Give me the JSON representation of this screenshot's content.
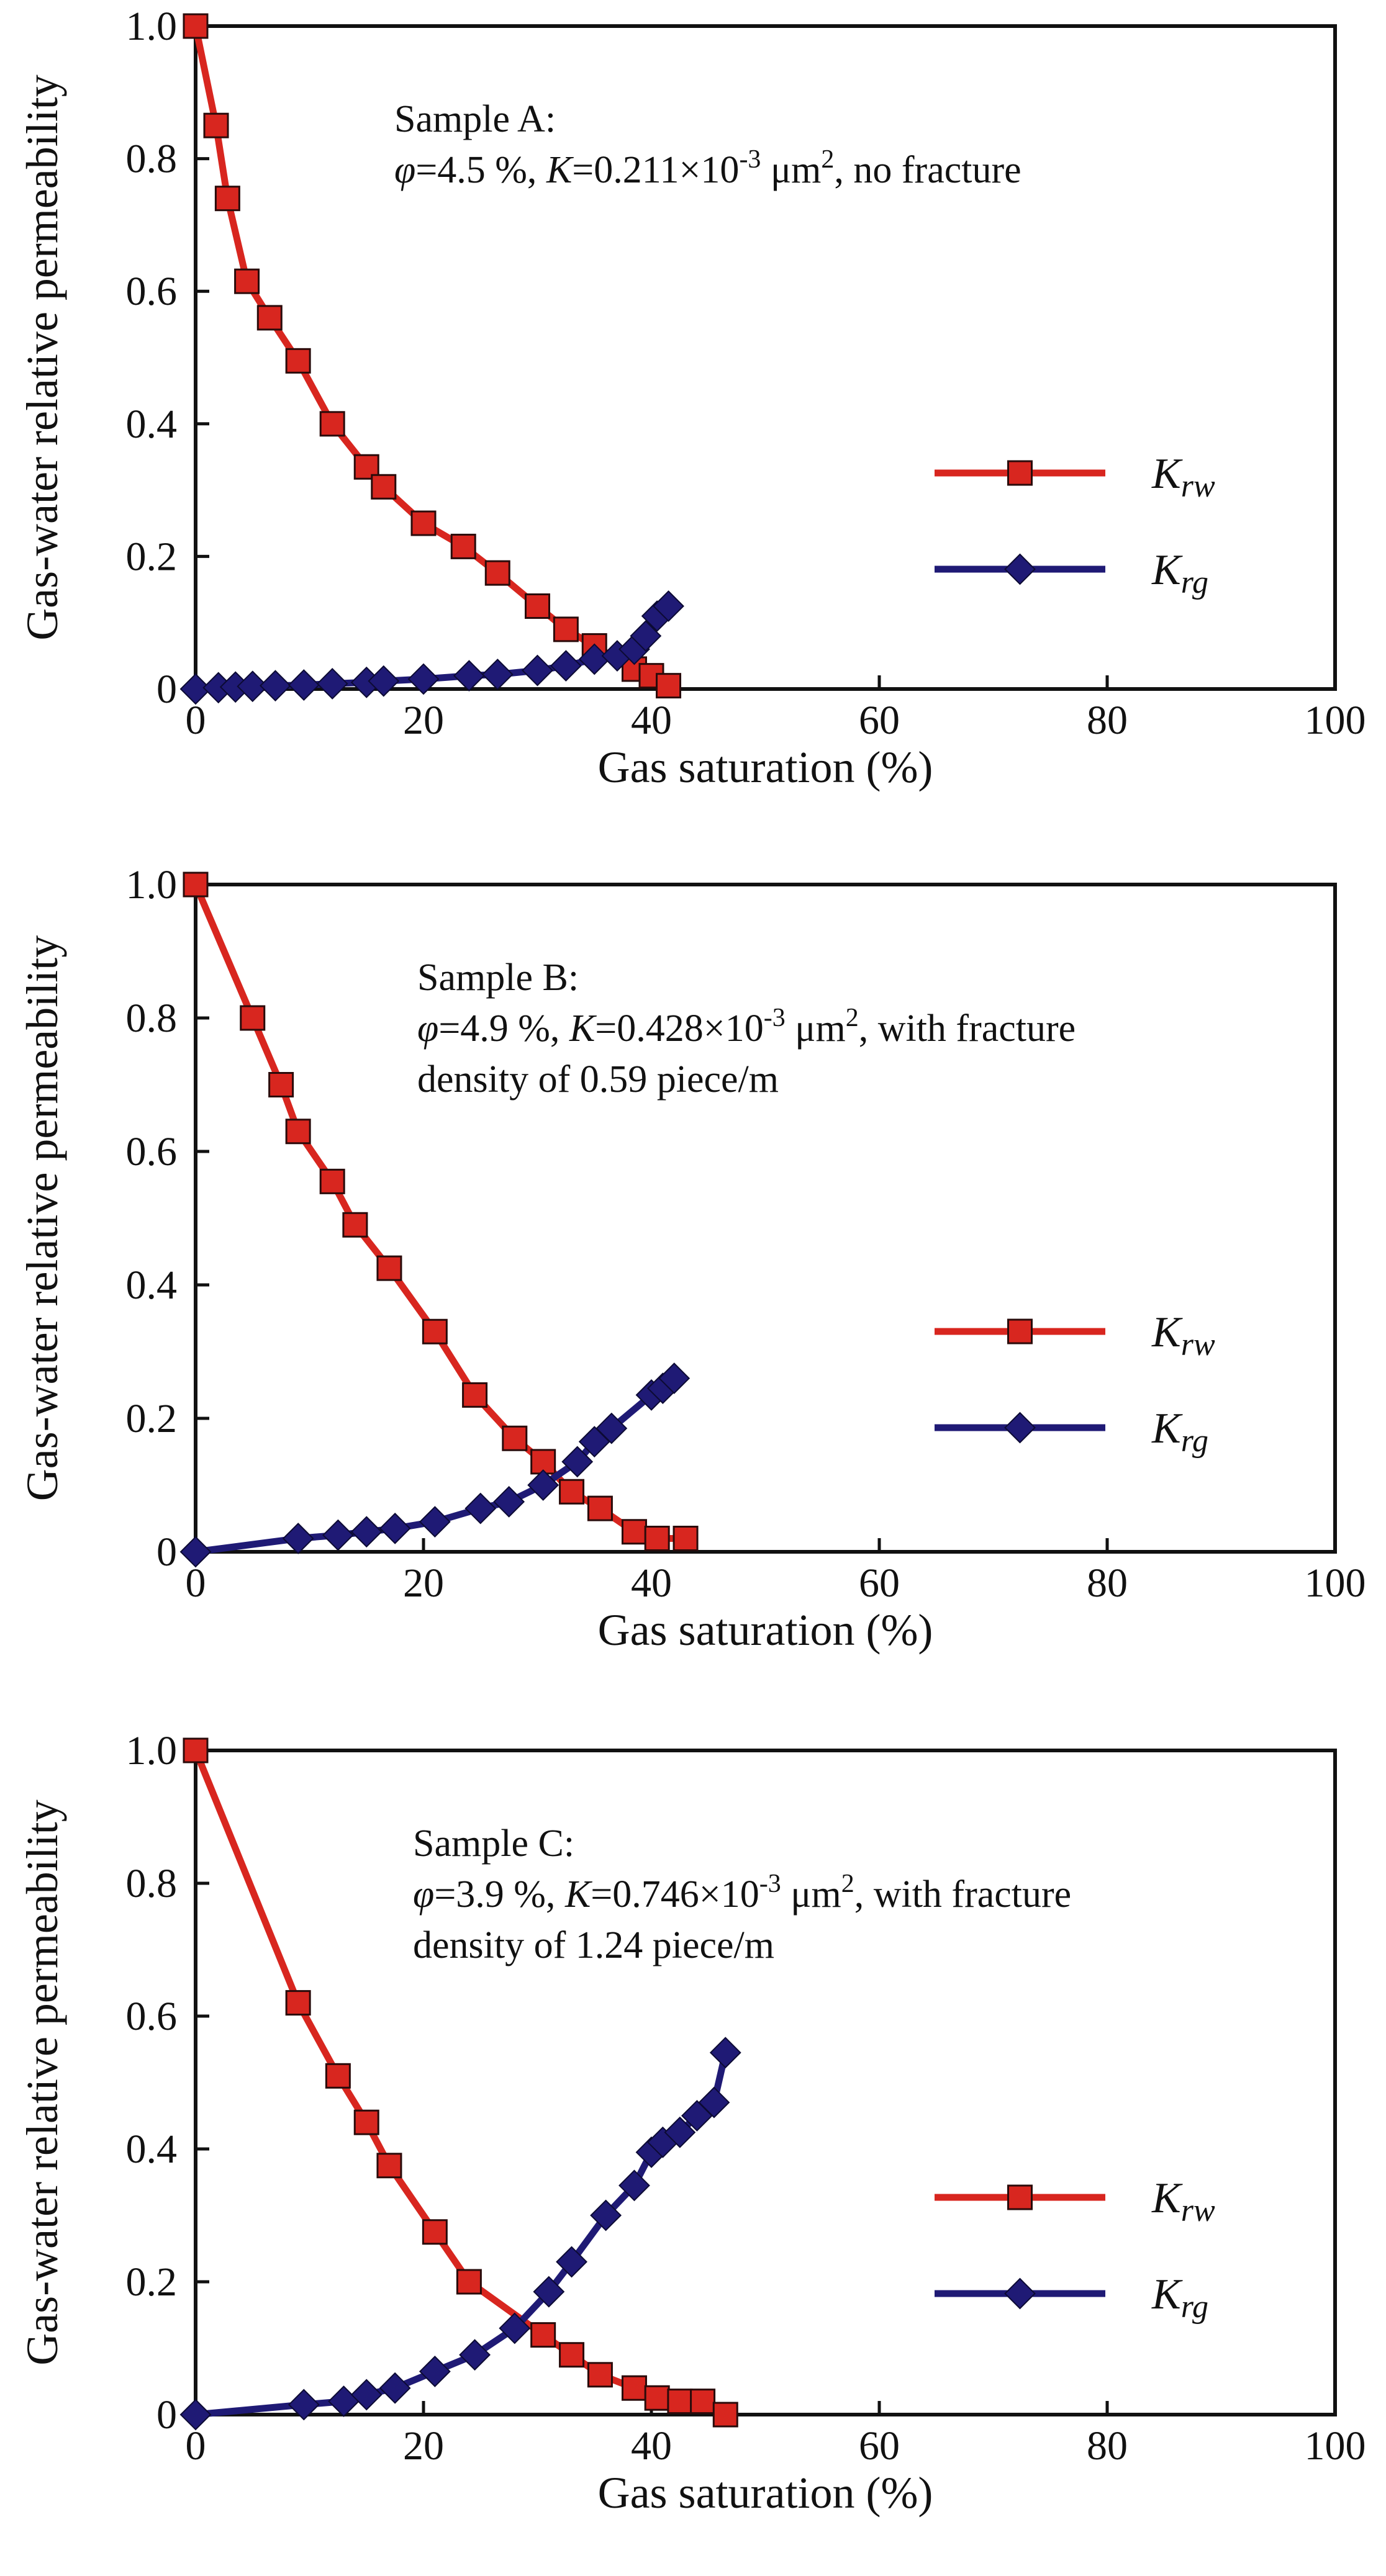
{
  "colors": {
    "krw": "#d8261f",
    "krg": "#1f1a75",
    "axis": "#111111"
  },
  "legend": {
    "krw_main": "K",
    "krw_sub": "rw",
    "krg_main": "K",
    "krg_sub": "rg"
  },
  "chart_data": [
    {
      "type": "line",
      "title": "Sample A:",
      "annotation": {
        "line1": "Sample A:",
        "line2": {
          "phi": "φ",
          "phi_val": "=4.5 %, ",
          "k": "K",
          "k_val": "=0.211×10",
          "exp": "-3",
          "unit": " μm",
          "unit_exp": "2",
          "tail": ", no fracture"
        }
      },
      "xlabel": "Gas saturation (%)",
      "ylabel": "Gas-water relative permeability",
      "xlim": [
        0,
        100
      ],
      "ylim": [
        0,
        1.0
      ],
      "xticks": [
        "0",
        "20",
        "40",
        "60",
        "80",
        "100"
      ],
      "yticks": [
        "0",
        "0.2",
        "0.4",
        "0.6",
        "0.8",
        "1.0"
      ],
      "series": [
        {
          "name": "Krw",
          "marker": "square",
          "x": [
            0,
            1.8,
            2.8,
            4.5,
            6.5,
            9,
            12,
            15,
            16.5,
            20,
            23.5,
            26.5,
            30,
            32.5,
            35,
            38.5,
            40,
            41.5
          ],
          "y": [
            1.0,
            0.85,
            0.74,
            0.615,
            0.56,
            0.495,
            0.4,
            0.335,
            0.305,
            0.25,
            0.215,
            0.175,
            0.125,
            0.09,
            0.065,
            0.03,
            0.02,
            0.005
          ]
        },
        {
          "name": "Krg",
          "marker": "diamond",
          "x": [
            0,
            2,
            3.5,
            5,
            7,
            9.5,
            12,
            15,
            16.5,
            20,
            24,
            26.5,
            30,
            32.5,
            35,
            37,
            38.5,
            39.5,
            40.5,
            41.5
          ],
          "y": [
            0,
            0.002,
            0.003,
            0.004,
            0.005,
            0.006,
            0.008,
            0.01,
            0.012,
            0.015,
            0.02,
            0.022,
            0.028,
            0.035,
            0.045,
            0.05,
            0.06,
            0.08,
            0.11,
            0.125
          ]
        }
      ]
    },
    {
      "type": "line",
      "title": "Sample B:",
      "annotation": {
        "line1": "Sample B:",
        "line2": {
          "phi": "φ",
          "phi_val": "=4.9 %, ",
          "k": "K",
          "k_val": "=0.428×10",
          "exp": "-3",
          "unit": " μm",
          "unit_exp": "2",
          "tail": ", with fracture"
        },
        "line3": "density of 0.59 piece/m"
      },
      "xlabel": "Gas saturation (%)",
      "ylabel": "Gas-water relative permeability",
      "xlim": [
        0,
        100
      ],
      "ylim": [
        0,
        1.0
      ],
      "xticks": [
        "0",
        "20",
        "40",
        "60",
        "80",
        "100"
      ],
      "yticks": [
        "0",
        "0.2",
        "0.4",
        "0.6",
        "0.8",
        "1.0"
      ],
      "series": [
        {
          "name": "Krw",
          "marker": "square",
          "x": [
            0,
            5,
            7.5,
            9,
            12,
            14,
            17,
            21,
            24.5,
            28,
            30.5,
            33,
            35.5,
            38.5,
            40.5,
            43
          ],
          "y": [
            1.0,
            0.8,
            0.7,
            0.63,
            0.555,
            0.49,
            0.425,
            0.33,
            0.235,
            0.17,
            0.135,
            0.09,
            0.065,
            0.03,
            0.02,
            0.02
          ]
        },
        {
          "name": "Krg",
          "marker": "diamond",
          "x": [
            0,
            9,
            12.5,
            15,
            17.5,
            21,
            25,
            27.5,
            30.5,
            33.5,
            35,
            36.5,
            40,
            41,
            42
          ],
          "y": [
            0,
            0.02,
            0.025,
            0.03,
            0.035,
            0.045,
            0.065,
            0.075,
            0.1,
            0.135,
            0.165,
            0.185,
            0.235,
            0.245,
            0.26
          ]
        }
      ]
    },
    {
      "type": "line",
      "title": "Sample C:",
      "annotation": {
        "line1": "Sample C:",
        "line2": {
          "phi": "φ",
          "phi_val": "=3.9 %, ",
          "k": "K",
          "k_val": "=0.746×10",
          "exp": "-3",
          "unit": " μm",
          "unit_exp": "2",
          "tail": ", with fracture"
        },
        "line3": "density of 1.24 piece/m"
      },
      "xlabel": "Gas saturation (%)",
      "ylabel": "Gas-water relative permeability",
      "xlim": [
        0,
        100
      ],
      "ylim": [
        0,
        1.0
      ],
      "xticks": [
        "0",
        "20",
        "40",
        "60",
        "80",
        "100"
      ],
      "yticks": [
        "0",
        "0.2",
        "0.4",
        "0.6",
        "0.8",
        "1.0"
      ],
      "series": [
        {
          "name": "Krw",
          "marker": "square",
          "x": [
            0,
            9,
            12.5,
            15,
            17,
            21,
            24,
            30.5,
            33,
            35.5,
            38.5,
            40.5,
            42.5,
            44.5,
            46.5
          ],
          "y": [
            1.0,
            0.62,
            0.51,
            0.44,
            0.375,
            0.275,
            0.2,
            0.12,
            0.09,
            0.06,
            0.04,
            0.025,
            0.02,
            0.02,
            0.0
          ]
        },
        {
          "name": "Krg",
          "marker": "diamond",
          "x": [
            0,
            9.5,
            13,
            15,
            17.5,
            21,
            24.5,
            28,
            31,
            33,
            36,
            38.5,
            40,
            41,
            42.5,
            44,
            45.5,
            46.5
          ],
          "y": [
            0,
            0.015,
            0.02,
            0.03,
            0.04,
            0.065,
            0.09,
            0.13,
            0.185,
            0.23,
            0.3,
            0.345,
            0.395,
            0.41,
            0.425,
            0.45,
            0.47,
            0.545
          ]
        }
      ]
    }
  ]
}
